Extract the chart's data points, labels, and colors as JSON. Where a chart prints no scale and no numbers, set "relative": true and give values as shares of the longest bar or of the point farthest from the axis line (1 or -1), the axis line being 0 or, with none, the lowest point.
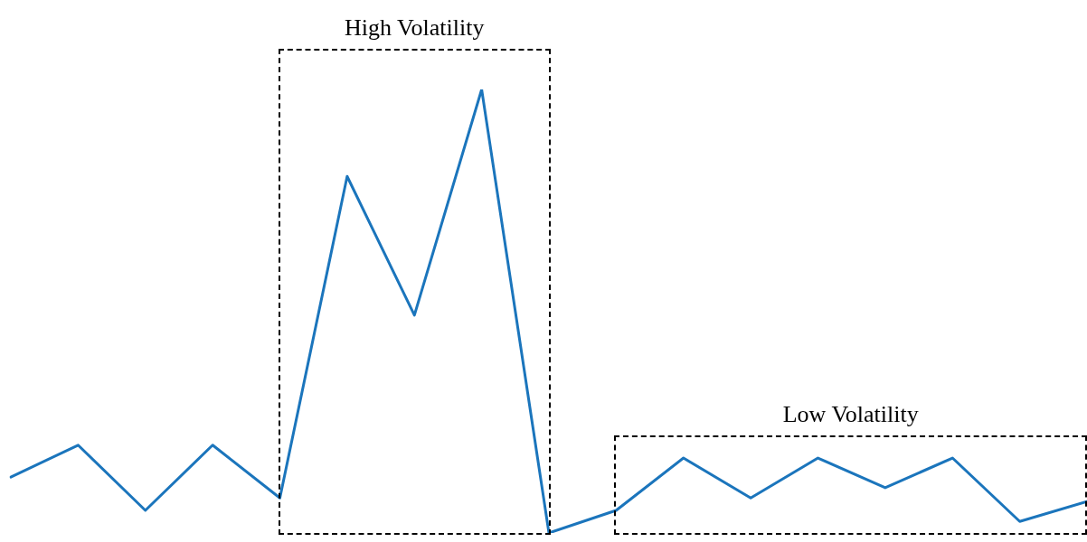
{
  "chart_data": {
    "type": "line",
    "relative": true,
    "categories": [
      null,
      null,
      null,
      null,
      null,
      null,
      null,
      null,
      null,
      null,
      null,
      null,
      null,
      null,
      null,
      null,
      null
    ],
    "marker": "none",
    "line_style": "solid",
    "series": [
      {
        "color": "#1b75bc",
        "values": [
          0.126,
          0.198,
          0.051,
          0.198,
          0.079,
          0.804,
          0.491,
          1,
          0,
          0.051,
          0.169,
          0.079,
          0.169,
          0.102,
          0.169,
          0.026,
          0.071
        ]
      }
    ],
    "annotations": [
      "High Volatility",
      "Low Volatility"
    ]
  }
}
